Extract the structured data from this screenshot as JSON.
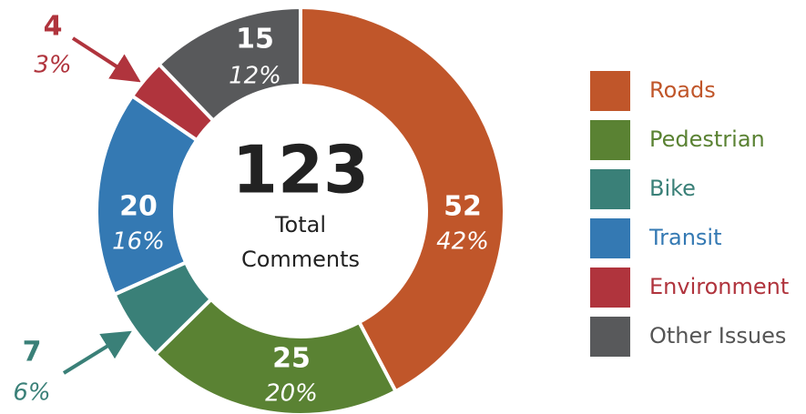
{
  "chart_data": {
    "type": "donut",
    "total": 123,
    "center_label": [
      "Total",
      "Comments"
    ],
    "categories": [
      "Roads",
      "Pedestrian",
      "Bike",
      "Transit",
      "Environment",
      "Other Issues"
    ],
    "values": [
      52,
      25,
      7,
      20,
      4,
      15
    ],
    "percent_labels": [
      "42%",
      "20%",
      "6%",
      "16%",
      "3%",
      "12%"
    ],
    "colors": [
      "#c0562a",
      "#5a8233",
      "#3a8078",
      "#3479b3",
      "#b0343d",
      "#58595b"
    ],
    "legend": "right"
  }
}
